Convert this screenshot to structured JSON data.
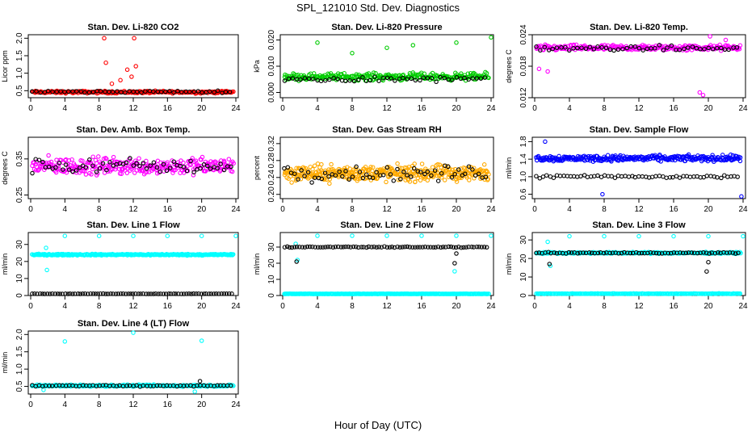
{
  "figure": {
    "title": "SPL_121010  Std. Dev. Diagnostics",
    "xlabel": "Hour of Day (UTC)"
  },
  "chart_data": [
    {
      "type": "scatter",
      "title": "Stan. Dev. Li-820 CO2",
      "ylabel": "Licor ppm",
      "xlim": [
        0,
        24
      ],
      "ylim": [
        0.3,
        2.1
      ],
      "xticks": [
        "0",
        "4",
        "8",
        "12",
        "16",
        "20",
        "24"
      ],
      "yticks": [
        0.5,
        1.0,
        1.5,
        2.0
      ],
      "ytick_labels": [
        "0.5",
        "1.0",
        "1.5",
        "2.0"
      ],
      "series": [
        {
          "color": "#ff0000",
          "baseline": 0.46,
          "spread": 0.05,
          "density": 240,
          "spikes": [
            [
              8.6,
              2.0
            ],
            [
              12.1,
              2.0
            ],
            [
              8.8,
              1.3
            ],
            [
              11.3,
              1.1
            ],
            [
              12.3,
              1.2
            ],
            [
              10.5,
              0.8
            ],
            [
              9.5,
              0.7
            ],
            [
              11.8,
              0.9
            ]
          ]
        },
        {
          "color": "#000000",
          "baseline": 0.47,
          "spread": 0.04,
          "density": 50,
          "spikes": []
        }
      ]
    },
    {
      "type": "scatter",
      "title": "Stan. Dev. Li-820 Pressure",
      "ylabel": "kPa",
      "xlim": [
        0,
        24
      ],
      "ylim": [
        -0.002,
        0.022
      ],
      "xticks": [
        "0",
        "4",
        "8",
        "12",
        "16",
        "20",
        "24"
      ],
      "yticks": [
        0.0,
        0.01,
        0.02
      ],
      "ytick_labels": [
        "0.000",
        "0.010",
        "0.020"
      ],
      "series": [
        {
          "color": "#00cc00",
          "baseline": 0.006,
          "spread": 0.002,
          "density": 260,
          "spikes": [
            [
              4,
              0.019
            ],
            [
              8,
              0.015
            ],
            [
              15,
              0.018
            ],
            [
              20,
              0.019
            ],
            [
              24,
              0.021
            ],
            [
              12,
              0.017
            ]
          ]
        },
        {
          "color": "#000000",
          "baseline": 0.005,
          "spread": 0.0015,
          "density": 50,
          "spikes": []
        }
      ]
    },
    {
      "type": "scatter",
      "title": "Stan. Dev. Li-820 Temp.",
      "ylabel": "degrees C",
      "xlim": [
        0,
        24
      ],
      "ylim": [
        0.012,
        0.024
      ],
      "xticks": [
        "0",
        "4",
        "8",
        "12",
        "16",
        "20",
        "24"
      ],
      "yticks": [
        0.012,
        0.018,
        0.024
      ],
      "ytick_labels": [
        "0.012",
        "0.018",
        "0.024"
      ],
      "series": [
        {
          "color": "#ff00ff",
          "baseline": 0.0215,
          "spread": 0.0008,
          "density": 240,
          "spikes": [
            [
              0.5,
              0.0175
            ],
            [
              1.5,
              0.017
            ],
            [
              19,
              0.013
            ],
            [
              19.4,
              0.0125
            ],
            [
              20.2,
              0.024
            ],
            [
              22,
              0.023
            ]
          ]
        },
        {
          "color": "#000000",
          "baseline": 0.0214,
          "spread": 0.0007,
          "density": 50,
          "spikes": []
        }
      ]
    },
    {
      "type": "scatter",
      "title": "Stan. Dev. Amb. Box Temp.",
      "ylabel": "degrees C",
      "xlim": [
        0,
        24
      ],
      "ylim": [
        0.24,
        0.41
      ],
      "xticks": [
        "0",
        "4",
        "8",
        "12",
        "16",
        "20",
        "24"
      ],
      "yticks": [
        0.25,
        0.35
      ],
      "ytick_labels": [
        "0.25",
        "0.35"
      ],
      "series": [
        {
          "color": "#ff00ff",
          "baseline": 0.33,
          "spread": 0.035,
          "density": 300,
          "spikes": []
        },
        {
          "color": "#000000",
          "baseline": 0.33,
          "spread": 0.03,
          "density": 60,
          "spikes": []
        }
      ]
    },
    {
      "type": "scatter",
      "title": "Stan. Dev. Gas Stream RH",
      "ylabel": "percent",
      "xlim": [
        0,
        24
      ],
      "ylim": [
        0.19,
        0.335
      ],
      "xticks": [
        "0",
        "4",
        "8",
        "12",
        "16",
        "20",
        "24"
      ],
      "yticks": [
        0.2,
        0.24,
        0.28,
        0.32
      ],
      "ytick_labels": [
        "0.20",
        "0.24",
        "0.28",
        "0.32"
      ],
      "series": [
        {
          "color": "#ffaa00",
          "baseline": 0.25,
          "spread": 0.028,
          "density": 380,
          "spikes": []
        },
        {
          "color": "#000000",
          "baseline": 0.25,
          "spread": 0.025,
          "density": 60,
          "spikes": []
        }
      ]
    },
    {
      "type": "scatter",
      "title": "Stan. Dev. Sample Flow",
      "ylabel": "ml/min",
      "xlim": [
        0,
        24
      ],
      "ylim": [
        0.5,
        1.9
      ],
      "xticks": [
        "0",
        "4",
        "8",
        "12",
        "16",
        "20",
        "24"
      ],
      "yticks": [
        0.6,
        1.0,
        1.4,
        1.8
      ],
      "ytick_labels": [
        "0.6",
        "1.0",
        "1.4",
        "1.8"
      ],
      "series": [
        {
          "color": "#0000ff",
          "baseline": 1.42,
          "spread": 0.1,
          "density": 300,
          "spikes": [
            [
              7.8,
              0.6
            ],
            [
              23.8,
              0.55
            ],
            [
              1.2,
              1.8
            ]
          ]
        },
        {
          "color": "#000000",
          "baseline": 1.0,
          "spread": 0.06,
          "density": 60,
          "spikes": []
        }
      ]
    },
    {
      "type": "scatter",
      "title": "Stan. Dev. Line 1 Flow",
      "ylabel": "ml/min",
      "xlim": [
        0,
        24
      ],
      "ylim": [
        0,
        37
      ],
      "xticks": [
        "0",
        "4",
        "8",
        "12",
        "16",
        "20",
        "24"
      ],
      "yticks": [
        0,
        10,
        20,
        30
      ],
      "ytick_labels": [
        "0",
        "10",
        "20",
        "30"
      ],
      "series": [
        {
          "color": "#00ffff",
          "baseline": 24,
          "spread": 0.6,
          "density": 300,
          "spikes": [
            [
              4,
              35
            ],
            [
              8,
              35
            ],
            [
              12,
              35
            ],
            [
              16,
              35
            ],
            [
              20,
              35
            ],
            [
              24,
              35
            ],
            [
              1.8,
              28
            ],
            [
              1.9,
              15
            ]
          ]
        },
        {
          "color": "#000000",
          "baseline": 1,
          "spread": 0.2,
          "density": 80,
          "spikes": []
        }
      ]
    },
    {
      "type": "scatter",
      "title": "Stan. Dev. Line 2 Flow",
      "ylabel": "ml/min",
      "xlim": [
        0,
        24
      ],
      "ylim": [
        0,
        39
      ],
      "xticks": [
        "0",
        "4",
        "8",
        "12",
        "16",
        "20",
        "24"
      ],
      "yticks": [
        0,
        10,
        20,
        30
      ],
      "ytick_labels": [
        "0",
        "10",
        "20",
        "30"
      ],
      "series": [
        {
          "color": "#00ffff",
          "baseline": 1,
          "spread": 0.2,
          "density": 280,
          "spikes": [
            [
              4,
              37
            ],
            [
              8,
              37
            ],
            [
              12,
              37
            ],
            [
              16,
              37
            ],
            [
              20,
              37
            ],
            [
              24,
              37
            ],
            [
              1.5,
              32
            ],
            [
              1.7,
              22
            ],
            [
              19.8,
              15
            ]
          ]
        },
        {
          "color": "#000000",
          "baseline": 30,
          "spread": 0.5,
          "density": 80,
          "spikes": [
            [
              1.6,
              21
            ],
            [
              19.8,
              20
            ],
            [
              20.0,
              26
            ]
          ]
        }
      ]
    },
    {
      "type": "scatter",
      "title": "Stan. Dev. Line 3 Flow",
      "ylabel": "ml/min",
      "xlim": [
        0,
        24
      ],
      "ylim": [
        0,
        34
      ],
      "xticks": [
        "0",
        "4",
        "8",
        "12",
        "16",
        "20",
        "24"
      ],
      "yticks": [
        0,
        10,
        20,
        30
      ],
      "ytick_labels": [
        "0",
        "10",
        "20",
        "30"
      ],
      "series": [
        {
          "color": "#00ffff",
          "baseline": 23,
          "spread": 0.6,
          "density": 280,
          "spikes": [
            [
              4,
              32
            ],
            [
              8,
              32
            ],
            [
              12,
              32
            ],
            [
              16,
              32
            ],
            [
              20,
              32
            ],
            [
              24,
              32
            ],
            [
              1.5,
              29
            ],
            [
              1.8,
              16
            ]
          ]
        },
        {
          "color": "#00ffff",
          "baseline": 1,
          "spread": 0.2,
          "density": 200,
          "spikes": []
        },
        {
          "color": "#000000",
          "baseline": 23,
          "spread": 0.5,
          "density": 70,
          "spikes": [
            [
              1.7,
              17
            ],
            [
              19.8,
              13
            ],
            [
              20,
              18
            ]
          ]
        }
      ]
    },
    {
      "type": "scatter",
      "title": "Stan. Dev. Line 4 (LT) Flow",
      "ylabel": "ml/min",
      "xlim": [
        0,
        24
      ],
      "ylim": [
        0.28,
        2.1
      ],
      "xticks": [
        "0",
        "4",
        "8",
        "12",
        "16",
        "20",
        "24"
      ],
      "yticks": [
        0.5,
        1.0,
        1.5,
        2.0
      ],
      "ytick_labels": [
        "0.5",
        "1.0",
        "1.5",
        "2.0"
      ],
      "series": [
        {
          "color": "#00ffff",
          "baseline": 0.52,
          "spread": 0.04,
          "density": 260,
          "spikes": [
            [
              4,
              1.8
            ],
            [
              12,
              2.05
            ],
            [
              20,
              1.82
            ],
            [
              1.5,
              0.4
            ],
            [
              19.2,
              0.35
            ]
          ]
        },
        {
          "color": "#000000",
          "baseline": 0.52,
          "spread": 0.03,
          "density": 60,
          "spikes": [
            [
              19.8,
              0.65
            ]
          ]
        }
      ]
    }
  ]
}
